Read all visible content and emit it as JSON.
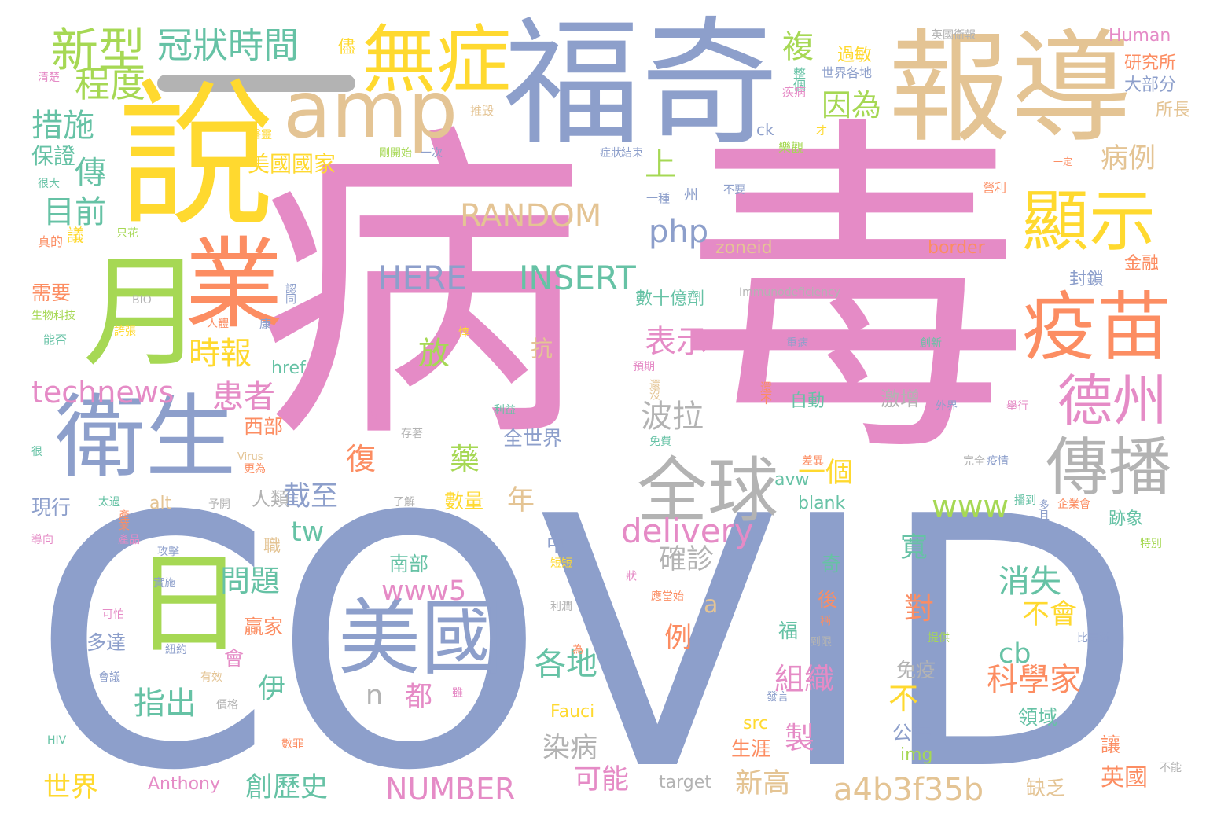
{
  "colors": {
    "pink": "#e58bc6",
    "blue": "#8d9fcb",
    "tan": "#e4c494",
    "yellow": "#ffd92f",
    "green": "#a6d854",
    "orange": "#fc8d62",
    "teal": "#66c2a5",
    "gray": "#b3b3b3"
  },
  "words": [
    {
      "text": "病",
      "color": "pink"
    },
    {
      "text": "毒",
      "color": "pink"
    },
    {
      "text": "COVID",
      "color": "blue"
    },
    {
      "text": "福奇",
      "color": "blue"
    },
    {
      "text": "報導",
      "color": "tan"
    },
    {
      "text": "說",
      "color": "yellow"
    },
    {
      "text": "amp",
      "color": "tan"
    },
    {
      "text": "無症",
      "color": "yellow"
    },
    {
      "text": "業",
      "color": "orange"
    },
    {
      "text": "月",
      "color": "green"
    },
    {
      "text": "衛生",
      "color": "blue"
    },
    {
      "text": "日",
      "color": "green"
    },
    {
      "text": "美國",
      "color": "blue"
    },
    {
      "text": "疫苗",
      "color": "orange"
    },
    {
      "text": "顯示",
      "color": "yellow"
    },
    {
      "text": "德州",
      "color": "pink"
    },
    {
      "text": "傳播",
      "color": "gray"
    },
    {
      "text": "全球",
      "color": "gray"
    },
    {
      "text": "新型",
      "color": "green"
    },
    {
      "text": "冠狀時間",
      "color": "teal"
    },
    {
      "text": "程度",
      "color": "green"
    },
    {
      "text": "措施",
      "color": "teal"
    },
    {
      "text": "保證",
      "color": "teal"
    },
    {
      "text": "傳",
      "color": "teal"
    },
    {
      "text": "目前",
      "color": "teal"
    },
    {
      "text": "technews",
      "color": "pink"
    },
    {
      "text": "時報",
      "color": "yellow"
    },
    {
      "text": "患者",
      "color": "pink"
    },
    {
      "text": "RANDOM",
      "color": "tan"
    },
    {
      "text": "HERE",
      "color": "blue"
    },
    {
      "text": "INSERT",
      "color": "teal"
    },
    {
      "text": "php",
      "color": "blue"
    },
    {
      "text": "美國國家",
      "color": "yellow"
    },
    {
      "text": "上",
      "color": "green"
    },
    {
      "text": "因為",
      "color": "green"
    },
    {
      "text": "複",
      "color": "green"
    },
    {
      "text": "病例",
      "color": "tan"
    },
    {
      "text": "表示",
      "color": "pink"
    },
    {
      "text": "放",
      "color": "green"
    },
    {
      "text": "波拉",
      "color": "gray"
    },
    {
      "text": "delivery",
      "color": "pink"
    },
    {
      "text": "一個",
      "color": "yellow"
    },
    {
      "text": "www",
      "color": "green"
    },
    {
      "text": "截至",
      "color": "blue"
    },
    {
      "text": "復",
      "color": "orange"
    },
    {
      "text": "藥",
      "color": "green"
    },
    {
      "text": "年",
      "color": "tan"
    },
    {
      "text": "tw",
      "color": "teal"
    },
    {
      "text": "人類",
      "color": "gray"
    },
    {
      "text": "www5",
      "color": "pink"
    },
    {
      "text": "確診",
      "color": "gray"
    },
    {
      "text": "問題",
      "color": "teal"
    },
    {
      "text": "寬",
      "color": "teal"
    },
    {
      "text": "消失",
      "color": "teal"
    },
    {
      "text": "不會",
      "color": "yellow"
    },
    {
      "text": "a",
      "color": "tan"
    },
    {
      "text": "例",
      "color": "orange"
    },
    {
      "text": "對",
      "color": "orange"
    },
    {
      "text": "cb",
      "color": "teal"
    },
    {
      "text": "科學家",
      "color": "orange"
    },
    {
      "text": "組織",
      "color": "pink"
    },
    {
      "text": "各地",
      "color": "teal"
    },
    {
      "text": "伊",
      "color": "teal"
    },
    {
      "text": "指出",
      "color": "teal"
    },
    {
      "text": "n",
      "color": "gray"
    },
    {
      "text": "都",
      "color": "pink"
    },
    {
      "text": "不",
      "color": "yellow"
    },
    {
      "text": "製",
      "color": "pink"
    },
    {
      "text": "染病",
      "color": "gray"
    },
    {
      "text": "可能",
      "color": "pink"
    },
    {
      "text": "新高",
      "color": "tan"
    },
    {
      "text": "a4b3f35b",
      "color": "tan"
    },
    {
      "text": "NUMBER",
      "color": "pink"
    },
    {
      "text": "創歷史",
      "color": "teal"
    },
    {
      "text": "世界",
      "color": "yellow"
    },
    {
      "text": "Anthony",
      "color": "pink"
    },
    {
      "text": "target",
      "color": "gray"
    },
    {
      "text": "英國",
      "color": "orange"
    },
    {
      "text": "Human",
      "color": "pink"
    },
    {
      "text": "研究所",
      "color": "orange"
    },
    {
      "text": "大部分",
      "color": "blue"
    },
    {
      "text": "所長",
      "color": "tan"
    },
    {
      "text": "過敏",
      "color": "yellow"
    },
    {
      "text": "世界各地",
      "color": "blue"
    },
    {
      "text": "儘",
      "color": "yellow"
    },
    {
      "text": "英國衛報",
      "color": "gray"
    },
    {
      "text": "整個",
      "color": "teal"
    },
    {
      "text": "疾病",
      "color": "pink"
    },
    {
      "text": "ck",
      "color": "blue"
    },
    {
      "text": "才",
      "color": "yellow"
    },
    {
      "text": "樂觀",
      "color": "green"
    },
    {
      "text": "border",
      "color": "orange"
    },
    {
      "text": "zoneid",
      "color": "tan"
    },
    {
      "text": "封鎖",
      "color": "blue"
    },
    {
      "text": "金融",
      "color": "orange"
    },
    {
      "text": "數十億劑",
      "color": "teal"
    },
    {
      "text": "Immunodeficiency",
      "color": "gray"
    },
    {
      "text": "一種",
      "color": "blue"
    },
    {
      "text": "州",
      "color": "blue"
    },
    {
      "text": "不要",
      "color": "blue"
    },
    {
      "text": "一定",
      "color": "orange"
    },
    {
      "text": "營利",
      "color": "orange"
    },
    {
      "text": "症狀",
      "color": "blue"
    },
    {
      "text": "結束",
      "color": "blue"
    },
    {
      "text": "剛開始",
      "color": "green"
    },
    {
      "text": "一次",
      "color": "blue"
    },
    {
      "text": "推毀",
      "color": "tan"
    },
    {
      "text": "醫靈",
      "color": "yellow"
    },
    {
      "text": "清楚",
      "color": "pink"
    },
    {
      "text": "很大",
      "color": "teal"
    },
    {
      "text": "議",
      "color": "yellow"
    },
    {
      "text": "只花",
      "color": "green"
    },
    {
      "text": "真的",
      "color": "orange"
    },
    {
      "text": "需要",
      "color": "orange"
    },
    {
      "text": "生物科技",
      "color": "green"
    },
    {
      "text": "BIO",
      "color": "gray"
    },
    {
      "text": "能否",
      "color": "teal"
    },
    {
      "text": "認同",
      "color": "blue"
    },
    {
      "text": "人體",
      "color": "orange"
    },
    {
      "text": "康",
      "color": "blue"
    },
    {
      "text": "誇張",
      "color": "yellow"
    },
    {
      "text": "抗",
      "color": "tan"
    },
    {
      "text": "悻",
      "color": "yellow"
    },
    {
      "text": "預期",
      "color": "pink"
    },
    {
      "text": "還沒",
      "color": "tan"
    },
    {
      "text": "重病",
      "color": "blue"
    },
    {
      "text": "創新",
      "color": "teal"
    },
    {
      "text": "還不",
      "color": "orange"
    },
    {
      "text": "href",
      "color": "teal"
    },
    {
      "text": "自動",
      "color": "teal"
    },
    {
      "text": "激增",
      "color": "gray"
    },
    {
      "text": "外界",
      "color": "blue"
    },
    {
      "text": "舉行",
      "color": "pink"
    },
    {
      "text": "利益",
      "color": "teal"
    },
    {
      "text": "內",
      "color": "pink"
    },
    {
      "text": "存著",
      "color": "gray"
    },
    {
      "text": "全世界",
      "color": "blue"
    },
    {
      "text": "免費",
      "color": "teal"
    },
    {
      "text": "西部",
      "color": "orange"
    },
    {
      "text": "很",
      "color": "teal"
    },
    {
      "text": "Virus",
      "color": "tan"
    },
    {
      "text": "更為",
      "color": "orange"
    },
    {
      "text": "差異",
      "color": "orange"
    },
    {
      "text": "疫情",
      "color": "blue"
    },
    {
      "text": "完全",
      "color": "gray"
    },
    {
      "text": "數量",
      "color": "yellow"
    },
    {
      "text": "avw",
      "color": "teal"
    },
    {
      "text": "播到",
      "color": "teal"
    },
    {
      "text": "企業會",
      "color": "orange"
    },
    {
      "text": "blank",
      "color": "teal"
    },
    {
      "text": "多且",
      "color": "blue"
    },
    {
      "text": "跡象",
      "color": "teal"
    },
    {
      "text": "alt",
      "color": "tan"
    },
    {
      "text": "予開",
      "color": "gray"
    },
    {
      "text": "了解",
      "color": "gray"
    },
    {
      "text": "太過",
      "color": "teal"
    },
    {
      "text": "現行",
      "color": "blue"
    },
    {
      "text": "產業",
      "color": "orange"
    },
    {
      "text": "產品",
      "color": "pink"
    },
    {
      "text": "導向",
      "color": "pink"
    },
    {
      "text": "職",
      "color": "tan"
    },
    {
      "text": "中",
      "color": "blue"
    },
    {
      "text": "攻擊",
      "color": "blue"
    },
    {
      "text": "短短",
      "color": "yellow"
    },
    {
      "text": "特別",
      "color": "green"
    },
    {
      "text": "南部",
      "color": "teal"
    },
    {
      "text": "奇",
      "color": "teal"
    },
    {
      "text": "後",
      "color": "orange"
    },
    {
      "text": "狀",
      "color": "pink"
    },
    {
      "text": "贏家",
      "color": "orange"
    },
    {
      "text": "實施",
      "color": "blue"
    },
    {
      "text": "可怕",
      "color": "pink"
    },
    {
      "text": "利潤",
      "color": "gray"
    },
    {
      "text": "應當始",
      "color": "orange"
    },
    {
      "text": "福",
      "color": "teal"
    },
    {
      "text": "稱",
      "color": "orange"
    },
    {
      "text": "提供",
      "color": "green"
    },
    {
      "text": "比晨瀚",
      "color": "blue"
    },
    {
      "text": "多達",
      "color": "blue"
    },
    {
      "text": "紐約",
      "color": "blue"
    },
    {
      "text": "會",
      "color": "pink"
    },
    {
      "text": "為",
      "color": "orange"
    },
    {
      "text": "到限",
      "color": "gray"
    },
    {
      "text": "會議",
      "color": "blue"
    },
    {
      "text": "有效",
      "color": "tan"
    },
    {
      "text": "雖",
      "color": "pink"
    },
    {
      "text": "免疫",
      "color": "gray"
    },
    {
      "text": "發言",
      "color": "blue"
    },
    {
      "text": "價格",
      "color": "gray"
    },
    {
      "text": "Fauci",
      "color": "yellow"
    },
    {
      "text": "領域",
      "color": "teal"
    },
    {
      "text": "src",
      "color": "yellow"
    },
    {
      "text": "公共",
      "color": "blue"
    },
    {
      "text": "生涯",
      "color": "orange"
    },
    {
      "text": "img",
      "color": "green"
    },
    {
      "text": "讓",
      "color": "orange"
    },
    {
      "text": "缺乏",
      "color": "tan"
    },
    {
      "text": "不能",
      "color": "gray"
    },
    {
      "text": "HIV",
      "color": "teal"
    },
    {
      "text": "數罪",
      "color": "orange"
    }
  ]
}
